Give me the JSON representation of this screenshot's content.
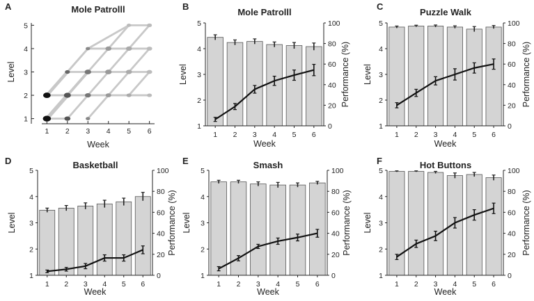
{
  "figure": {
    "tick_color": "#222222",
    "bar_fill": "#d4d4d4",
    "bar_stroke": "#555555",
    "line_color": "#111111"
  },
  "chart_data": [
    {
      "type": "scatter",
      "panel": "A",
      "title": "Mole Patrolll",
      "xlabel": "Week",
      "ylabel": "Level",
      "x": [
        1,
        2,
        3,
        4,
        5,
        6
      ],
      "xlim": [
        0.75,
        6.25
      ],
      "ylim": [
        0.9,
        5.1
      ],
      "xticks": [
        1,
        2,
        3,
        4,
        5,
        6
      ],
      "yticks": [
        1,
        2,
        3,
        4,
        5
      ],
      "dots": [
        {
          "x": 1,
          "y": 1,
          "gray": "#111111",
          "size": 1.6
        },
        {
          "x": 1,
          "y": 2,
          "gray": "#111111",
          "size": 1.5
        },
        {
          "x": 2,
          "y": 1,
          "gray": "#555555",
          "size": 1.2
        },
        {
          "x": 2,
          "y": 2,
          "gray": "#555555",
          "size": 1.4
        },
        {
          "x": 2,
          "y": 3,
          "gray": "#666666",
          "size": 1.0
        },
        {
          "x": 3,
          "y": 1,
          "gray": "#888888",
          "size": 0.9
        },
        {
          "x": 3,
          "y": 2,
          "gray": "#777777",
          "size": 1.2
        },
        {
          "x": 3,
          "y": 3,
          "gray": "#777777",
          "size": 1.3
        },
        {
          "x": 3,
          "y": 4,
          "gray": "#888888",
          "size": 0.9
        },
        {
          "x": 4,
          "y": 2,
          "gray": "#999999",
          "size": 1.1
        },
        {
          "x": 4,
          "y": 3,
          "gray": "#999999",
          "size": 1.3
        },
        {
          "x": 4,
          "y": 4,
          "gray": "#999999",
          "size": 1.2
        },
        {
          "x": 5,
          "y": 2,
          "gray": "#aaaaaa",
          "size": 1.0
        },
        {
          "x": 5,
          "y": 3,
          "gray": "#aaaaaa",
          "size": 1.2
        },
        {
          "x": 5,
          "y": 4,
          "gray": "#aaaaaa",
          "size": 1.2
        },
        {
          "x": 5,
          "y": 5,
          "gray": "#bbbbbb",
          "size": 0.9
        },
        {
          "x": 6,
          "y": 2,
          "gray": "#bbbbbb",
          "size": 1.0
        },
        {
          "x": 6,
          "y": 3,
          "gray": "#bbbbbb",
          "size": 1.1
        },
        {
          "x": 6,
          "y": 4,
          "gray": "#bbbbbb",
          "size": 1.1
        },
        {
          "x": 6,
          "y": 5,
          "gray": "#bbbbbb",
          "size": 1.0
        }
      ],
      "transitions": [
        {
          "from": [
            1,
            1
          ],
          "to": [
            2,
            2
          ],
          "weight": 5
        },
        {
          "from": [
            1,
            2
          ],
          "to": [
            2,
            3
          ],
          "weight": 4
        },
        {
          "from": [
            1,
            1
          ],
          "to": [
            3,
            3
          ],
          "weight": 3
        },
        {
          "from": [
            1,
            2
          ],
          "to": [
            3,
            4
          ],
          "weight": 2
        },
        {
          "from": [
            1,
            1
          ],
          "to": [
            2,
            1
          ],
          "weight": 2
        },
        {
          "from": [
            1,
            2
          ],
          "to": [
            2,
            2
          ],
          "weight": 2
        },
        {
          "from": [
            2,
            1
          ],
          "to": [
            3,
            2
          ],
          "weight": 2
        },
        {
          "from": [
            2,
            2
          ],
          "to": [
            3,
            3
          ],
          "weight": 3
        },
        {
          "from": [
            2,
            3
          ],
          "to": [
            3,
            4
          ],
          "weight": 2
        },
        {
          "from": [
            2,
            2
          ],
          "to": [
            3,
            2
          ],
          "weight": 2
        },
        {
          "from": [
            2,
            3
          ],
          "to": [
            3,
            3
          ],
          "weight": 2
        },
        {
          "from": [
            3,
            1
          ],
          "to": [
            4,
            2
          ],
          "weight": 2
        },
        {
          "from": [
            3,
            2
          ],
          "to": [
            4,
            3
          ],
          "weight": 2
        },
        {
          "from": [
            3,
            3
          ],
          "to": [
            4,
            4
          ],
          "weight": 2
        },
        {
          "from": [
            3,
            2
          ],
          "to": [
            4,
            2
          ],
          "weight": 2
        },
        {
          "from": [
            3,
            3
          ],
          "to": [
            4,
            3
          ],
          "weight": 2
        },
        {
          "from": [
            3,
            4
          ],
          "to": [
            4,
            4
          ],
          "weight": 2
        },
        {
          "from": [
            3,
            4
          ],
          "to": [
            5,
            5
          ],
          "weight": 2
        },
        {
          "from": [
            4,
            2
          ],
          "to": [
            5,
            3
          ],
          "weight": 2
        },
        {
          "from": [
            4,
            3
          ],
          "to": [
            5,
            4
          ],
          "weight": 2
        },
        {
          "from": [
            4,
            4
          ],
          "to": [
            5,
            5
          ],
          "weight": 2
        },
        {
          "from": [
            4,
            2
          ],
          "to": [
            5,
            2
          ],
          "weight": 2
        },
        {
          "from": [
            4,
            3
          ],
          "to": [
            5,
            3
          ],
          "weight": 2
        },
        {
          "from": [
            4,
            4
          ],
          "to": [
            5,
            4
          ],
          "weight": 2
        },
        {
          "from": [
            5,
            2
          ],
          "to": [
            6,
            3
          ],
          "weight": 2
        },
        {
          "from": [
            5,
            3
          ],
          "to": [
            6,
            4
          ],
          "weight": 2
        },
        {
          "from": [
            5,
            4
          ],
          "to": [
            6,
            5
          ],
          "weight": 2
        },
        {
          "from": [
            5,
            2
          ],
          "to": [
            6,
            2
          ],
          "weight": 2
        },
        {
          "from": [
            5,
            3
          ],
          "to": [
            6,
            3
          ],
          "weight": 2
        },
        {
          "from": [
            5,
            4
          ],
          "to": [
            6,
            4
          ],
          "weight": 2
        },
        {
          "from": [
            5,
            5
          ],
          "to": [
            6,
            5
          ],
          "weight": 2
        },
        {
          "from": [
            3,
            4
          ],
          "to": [
            4,
            4
          ],
          "weight": 1
        }
      ]
    },
    {
      "type": "bar+line",
      "panel": "B",
      "title": "Mole Patrolll",
      "xlabel": "Week",
      "ylabel": "Level",
      "y2label": "Performance (%)",
      "categories": [
        1,
        2,
        3,
        4,
        5,
        6
      ],
      "ylim": [
        1,
        5
      ],
      "yticks": [
        1,
        2,
        3,
        4,
        5
      ],
      "y2lim": [
        0,
        100
      ],
      "y2ticks": [
        0,
        20,
        40,
        60,
        80,
        100
      ],
      "bars": {
        "name": "Performance (%)",
        "values": [
          86,
          81,
          82,
          79,
          78,
          77
        ],
        "errors": [
          2.5,
          2.5,
          2.5,
          2.5,
          3.0,
          3.5
        ]
      },
      "line": {
        "name": "Level",
        "values": [
          1.25,
          1.75,
          2.42,
          2.75,
          2.97,
          3.17
        ],
        "errors": [
          0.08,
          0.12,
          0.15,
          0.18,
          0.2,
          0.22
        ]
      }
    },
    {
      "type": "bar+line",
      "panel": "C",
      "title": "Puzzle Walk",
      "xlabel": "Week",
      "ylabel": "Level",
      "y2label": "Performance (%)",
      "categories": [
        1,
        2,
        3,
        4,
        5,
        6
      ],
      "ylim": [
        1,
        5
      ],
      "yticks": [
        1,
        2,
        3,
        4,
        5
      ],
      "y2lim": [
        0,
        100
      ],
      "y2ticks": [
        0,
        20,
        40,
        60,
        80,
        100
      ],
      "bars": {
        "name": "Performance (%)",
        "values": [
          96,
          97,
          97,
          96,
          94,
          96
        ],
        "errors": [
          1.0,
          0.8,
          1.0,
          1.2,
          2.5,
          1.5
        ]
      },
      "line": {
        "name": "Level",
        "values": [
          1.8,
          2.28,
          2.75,
          3.0,
          3.25,
          3.4
        ],
        "errors": [
          0.1,
          0.14,
          0.16,
          0.22,
          0.2,
          0.2
        ]
      }
    },
    {
      "type": "bar+line",
      "panel": "D",
      "title": "Basketball",
      "xlabel": "Week",
      "ylabel": "Level",
      "y2label": "Performance (%)",
      "categories": [
        1,
        2,
        3,
        4,
        5,
        6
      ],
      "ylim": [
        1,
        5
      ],
      "yticks": [
        1,
        2,
        3,
        4,
        5
      ],
      "y2lim": [
        0,
        100
      ],
      "y2ticks": [
        0,
        20,
        40,
        60,
        80,
        100
      ],
      "bars": {
        "name": "Performance (%)",
        "values": [
          62,
          64,
          66,
          68,
          70,
          75
        ],
        "errors": [
          2.0,
          2.5,
          3.0,
          3.5,
          3.5,
          4.0
        ]
      },
      "line": {
        "name": "Level",
        "values": [
          1.15,
          1.23,
          1.35,
          1.66,
          1.66,
          1.97
        ],
        "errors": [
          0.05,
          0.07,
          0.1,
          0.12,
          0.12,
          0.15
        ]
      }
    },
    {
      "type": "bar+line",
      "panel": "E",
      "title": "Smash",
      "xlabel": "Week",
      "ylabel": "Level",
      "y2label": "Performance (%)",
      "categories": [
        1,
        2,
        3,
        4,
        5,
        6
      ],
      "ylim": [
        1,
        5
      ],
      "yticks": [
        1,
        2,
        3,
        4,
        5
      ],
      "y2lim": [
        0,
        100
      ],
      "y2ticks": [
        0,
        20,
        40,
        60,
        80,
        100
      ],
      "bars": {
        "name": "Performance (%)",
        "values": [
          89,
          89,
          87,
          86,
          86,
          88
        ],
        "errors": [
          1.5,
          1.5,
          2.0,
          2.5,
          2.0,
          1.5
        ]
      },
      "line": {
        "name": "Level",
        "values": [
          1.25,
          1.65,
          2.1,
          2.3,
          2.44,
          2.6
        ],
        "errors": [
          0.08,
          0.1,
          0.08,
          0.12,
          0.13,
          0.15
        ]
      }
    },
    {
      "type": "bar+line",
      "panel": "F",
      "title": "Hot Buttons",
      "xlabel": "Week",
      "ylabel": "Level",
      "y2label": "Performance (%)",
      "categories": [
        1,
        2,
        3,
        4,
        5,
        6
      ],
      "ylim": [
        1,
        5
      ],
      "yticks": [
        1,
        2,
        3,
        4,
        5
      ],
      "y2lim": [
        0,
        100
      ],
      "y2ticks": [
        0,
        20,
        40,
        60,
        80,
        100
      ],
      "bars": {
        "name": "Performance (%)",
        "values": [
          99,
          99,
          98,
          95,
          96,
          93
        ],
        "errors": [
          0.5,
          0.5,
          1.0,
          2.5,
          2.0,
          2.5
        ]
      },
      "line": {
        "name": "Level",
        "values": [
          1.7,
          2.2,
          2.5,
          3.0,
          3.3,
          3.55
        ],
        "errors": [
          0.1,
          0.14,
          0.18,
          0.2,
          0.2,
          0.2
        ]
      }
    }
  ]
}
